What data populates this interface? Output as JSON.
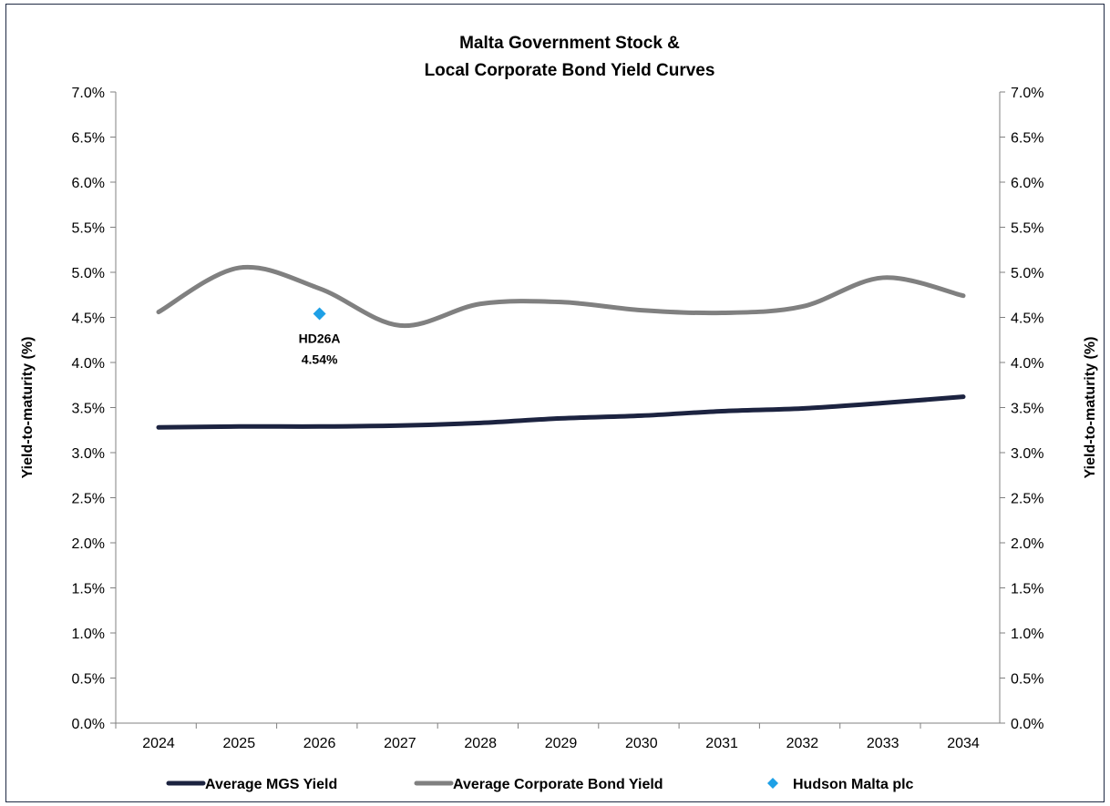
{
  "chart_data": {
    "type": "line",
    "title_lines": [
      "Malta Government Stock &",
      "Local Corporate Bond Yield Curves"
    ],
    "ylabel_left": "Yield-to-maturity (%)",
    "ylabel_right": "Yield-to-maturity (%)",
    "ylim": [
      0,
      7
    ],
    "y_ticks": [
      0,
      0.5,
      1,
      1.5,
      2,
      2.5,
      3,
      3.5,
      4,
      4.5,
      5,
      5.5,
      6,
      6.5,
      7
    ],
    "y_tick_labels": [
      "0.0%",
      "0.5%",
      "1.0%",
      "1.5%",
      "2.0%",
      "2.5%",
      "3.0%",
      "3.5%",
      "4.0%",
      "4.5%",
      "5.0%",
      "5.5%",
      "6.0%",
      "6.5%",
      "7.0%"
    ],
    "categories": [
      "2024",
      "2025",
      "2026",
      "2027",
      "2028",
      "2029",
      "2030",
      "2031",
      "2032",
      "2033",
      "2034"
    ],
    "grid": false,
    "legend_position": "bottom",
    "series": [
      {
        "name": "Average MGS Yield",
        "kind": "line",
        "color": "#1c2340",
        "values": [
          3.28,
          3.29,
          3.29,
          3.3,
          3.33,
          3.38,
          3.41,
          3.46,
          3.49,
          3.55,
          3.62
        ]
      },
      {
        "name": "Average Corporate Bond Yield",
        "kind": "line",
        "color": "#808080",
        "values": [
          4.56,
          5.05,
          4.82,
          4.41,
          4.65,
          4.67,
          4.58,
          4.55,
          4.62,
          4.94,
          4.74
        ]
      },
      {
        "name": "Hudson Malta plc",
        "kind": "scatter",
        "color": "#1ea0e6",
        "points": [
          {
            "x": "2026",
            "y": 4.54,
            "label_lines": [
              "HD26A",
              "4.54%"
            ]
          }
        ]
      }
    ]
  }
}
